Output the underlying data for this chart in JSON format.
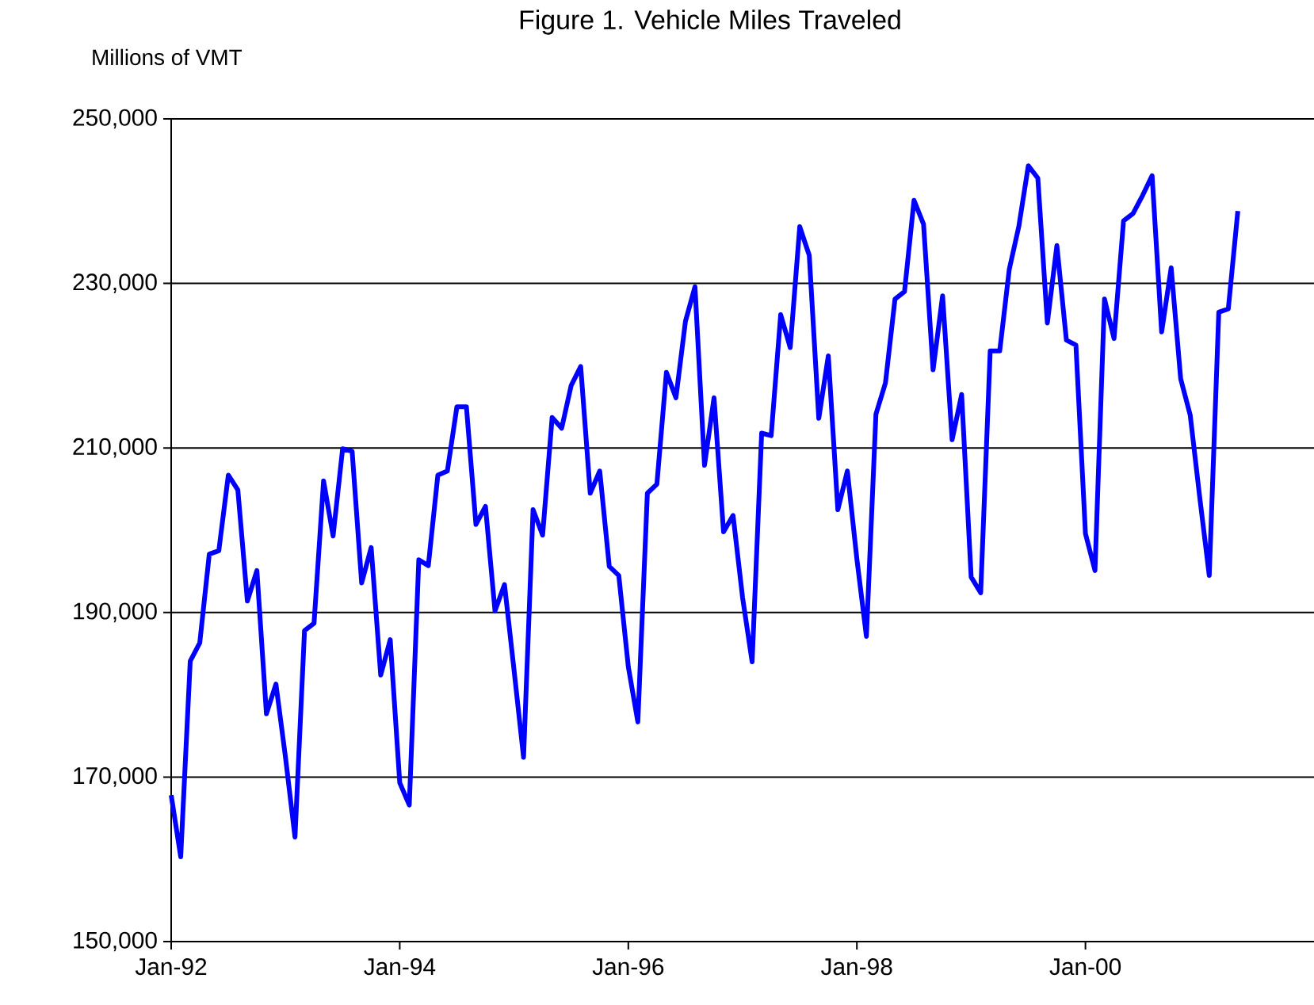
{
  "chart_data": {
    "type": "line",
    "title": "Figure 1. Vehicle Miles Traveled",
    "ylabel": "Millions of VMT",
    "x": [
      "1992-01",
      "1992-02",
      "1992-03",
      "1992-04",
      "1992-05",
      "1992-06",
      "1992-07",
      "1992-08",
      "1992-09",
      "1992-10",
      "1992-11",
      "1992-12",
      "1993-01",
      "1993-02",
      "1993-03",
      "1993-04",
      "1993-05",
      "1993-06",
      "1993-07",
      "1993-08",
      "1993-09",
      "1993-10",
      "1993-11",
      "1993-12",
      "1994-01",
      "1994-02",
      "1994-03",
      "1994-04",
      "1994-05",
      "1994-06",
      "1994-07",
      "1994-08",
      "1994-09",
      "1994-10",
      "1994-11",
      "1994-12",
      "1995-01",
      "1995-02",
      "1995-03",
      "1995-04",
      "1995-05",
      "1995-06",
      "1995-07",
      "1995-08",
      "1995-09",
      "1995-10",
      "1995-11",
      "1995-12",
      "1996-01",
      "1996-02",
      "1996-03",
      "1996-04",
      "1996-05",
      "1996-06",
      "1996-07",
      "1996-08",
      "1996-09",
      "1996-10",
      "1996-11",
      "1996-12",
      "1997-01",
      "1997-02",
      "1997-03",
      "1997-04",
      "1997-05",
      "1997-06",
      "1997-07",
      "1997-08",
      "1997-09",
      "1997-10",
      "1997-11",
      "1997-12",
      "1998-01",
      "1998-02",
      "1998-03",
      "1998-04",
      "1998-05",
      "1998-06",
      "1998-07",
      "1998-08",
      "1998-09",
      "1998-10",
      "1998-11",
      "1998-12",
      "1999-01",
      "1999-02",
      "1999-03",
      "1999-04",
      "1999-05",
      "1999-06",
      "1999-07",
      "1999-08",
      "1999-09",
      "1999-10",
      "1999-11",
      "1999-12",
      "2000-01",
      "2000-02",
      "2000-03",
      "2000-04",
      "2000-05",
      "2000-06",
      "2000-07",
      "2000-08",
      "2000-09",
      "2000-10",
      "2000-11",
      "2000-12",
      "2001-01",
      "2001-02",
      "2001-03",
      "2001-04",
      "2001-05"
    ],
    "values": [
      167800,
      160300,
      184100,
      186300,
      197100,
      197500,
      206700,
      204900,
      191400,
      195100,
      177700,
      181300,
      172400,
      162700,
      187800,
      188700,
      206000,
      199300,
      209900,
      209600,
      193600,
      197900,
      182400,
      186700,
      169300,
      166600,
      196400,
      195700,
      206700,
      207200,
      215000,
      215000,
      200700,
      202900,
      190200,
      193400,
      183000,
      172400,
      202500,
      199400,
      213700,
      212400,
      217600,
      219900,
      204500,
      207200,
      195600,
      194500,
      183400,
      176700,
      204500,
      205600,
      219200,
      216100,
      225400,
      229600,
      207900,
      216100,
      199800,
      201800,
      191800,
      184000,
      211800,
      211500,
      226200,
      222200,
      236900,
      233400,
      213600,
      221200,
      202500,
      207200,
      196500,
      187100,
      214100,
      217900,
      228100,
      229000,
      240100,
      237200,
      219500,
      228500,
      211000,
      216500,
      194300,
      192400,
      221800,
      221800,
      231700,
      236900,
      244300,
      242800,
      225200,
      234600,
      223100,
      222500,
      199600,
      195100,
      228100,
      223300,
      237600,
      238500,
      240700,
      243100,
      224100,
      231900,
      218400,
      214000,
      204000,
      194500,
      226500,
      226900,
      238800
    ],
    "color": "#0000ff",
    "xlim": [
      "1992-01",
      "2002-01"
    ],
    "xticks": [
      {
        "value": "1992-01",
        "label": "Jan-92"
      },
      {
        "value": "1994-01",
        "label": "Jan-94"
      },
      {
        "value": "1996-01",
        "label": "Jan-96"
      },
      {
        "value": "1998-01",
        "label": "Jan-98"
      },
      {
        "value": "2000-01",
        "label": "Jan-00"
      }
    ],
    "ylim": [
      150000,
      250000
    ],
    "yticks": [
      {
        "value": 150000,
        "label": "150,000"
      },
      {
        "value": 170000,
        "label": "170,000"
      },
      {
        "value": 190000,
        "label": "190,000"
      },
      {
        "value": 210000,
        "label": "210,000"
      },
      {
        "value": 230000,
        "label": "230,000"
      },
      {
        "value": 250000,
        "label": "250,000"
      }
    ],
    "grid": "y"
  }
}
